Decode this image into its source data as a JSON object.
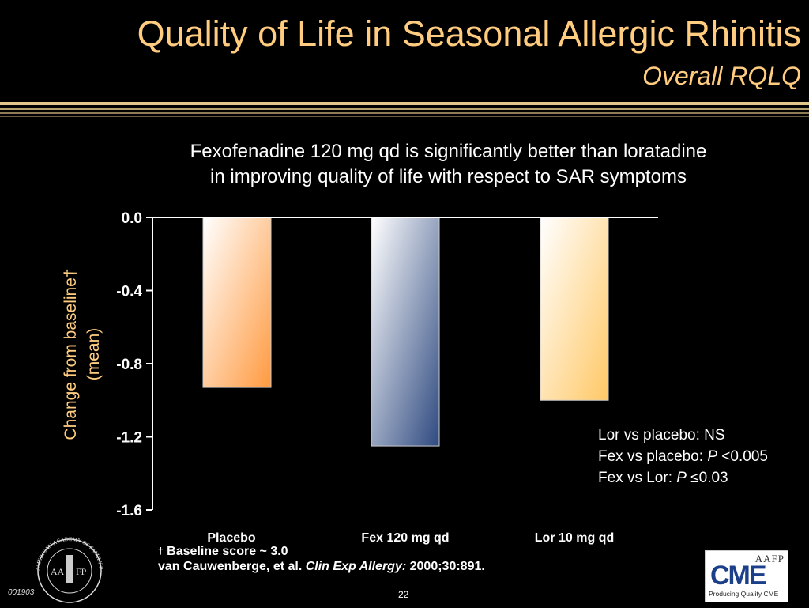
{
  "slide": {
    "title": "Quality of Life in Seasonal Allergic Rhinitis",
    "subtitle": "Overall RQLQ",
    "statement_line1": "Fexofenadine 120 mg qd is significantly better than loratadine",
    "statement_line2": "in improving quality of life with respect to SAR symptoms",
    "stats": {
      "line1": "Lor vs placebo: NS",
      "line2_prefix": "Fex vs placebo: ",
      "line2_p": "P",
      "line2_value": " <0.005",
      "line3_prefix": "Fex vs Lor: ",
      "line3_p": "P",
      "line3_value": " ≤0.03"
    },
    "footnote_dagger": "†",
    "footnote_line1": "Baseline score ~ 3.0",
    "citation_authors": "van Cauwenberge, et al. ",
    "citation_journal": "Clin Exp Allergy:",
    "citation_ref": " 2000;30:891.",
    "slide_code": "001903",
    "page_number": "22",
    "logo_left_text": "AMERICAN ACADEMY OF FAMILY PHYSICIANS",
    "logo_left_initials_l": "AA",
    "logo_left_initials_r": "FP",
    "logo_right_top": "AAFP",
    "logo_right_main": "CME",
    "logo_right_sub": "Producing Quality CME"
  },
  "chart_data": {
    "type": "bar",
    "categories": [
      "Placebo",
      "Fex 120 mg qd",
      "Lor 10 mg qd"
    ],
    "values": [
      -0.93,
      -1.25,
      -1.0
    ],
    "ylabel_line1": "Change from baseline†",
    "ylabel_line2": "(mean)",
    "ylim": [
      -1.6,
      0.0
    ],
    "yticks": [
      0.0,
      -0.4,
      -0.8,
      -1.2,
      -1.6
    ],
    "ytick_labels": [
      "0.0",
      "-0.4",
      "-0.8",
      "-1.2",
      "-1.6"
    ],
    "bar_colors": [
      "#ff9a40",
      "#2f4a80",
      "#ffc866"
    ],
    "grid": false
  }
}
